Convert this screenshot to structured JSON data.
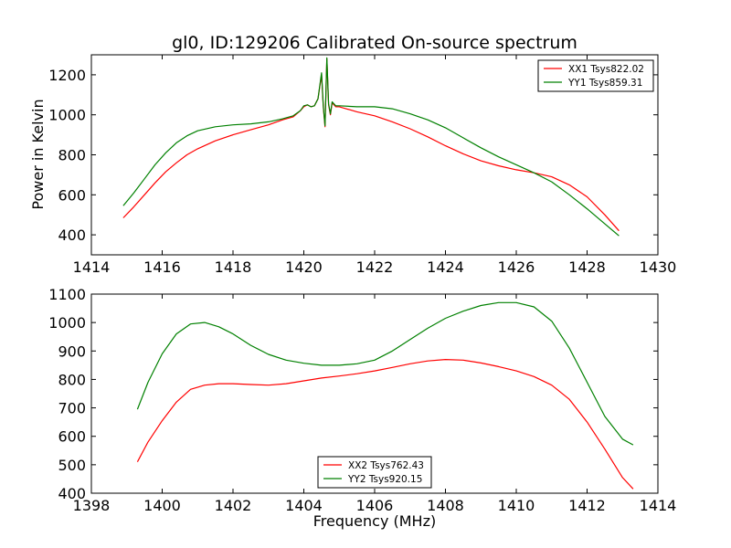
{
  "chart_data": [
    {
      "type": "line",
      "title": "gl0, ID:129206 Calibrated On-source spectrum",
      "xlabel": "",
      "ylabel": "Power in Kelvin",
      "xlim": [
        1414,
        1430
      ],
      "ylim": [
        300,
        1300
      ],
      "xticks": [
        "1414",
        "1416",
        "1418",
        "1420",
        "1422",
        "1424",
        "1426",
        "1428",
        "1430"
      ],
      "yticks": [
        "400",
        "600",
        "800",
        "1000",
        "1200"
      ],
      "legend_position": "top-right",
      "series": [
        {
          "name": "XX1 Tsys822.02",
          "color": "#ff0000",
          "x": [
            1414.9,
            1415.2,
            1415.5,
            1415.8,
            1416.1,
            1416.4,
            1416.7,
            1417.0,
            1417.5,
            1418.0,
            1418.5,
            1419.0,
            1419.4,
            1419.7,
            1419.9,
            1420.0,
            1420.1,
            1420.2,
            1420.3,
            1420.4,
            1420.5,
            1420.55,
            1420.6,
            1420.65,
            1420.7,
            1420.75,
            1420.8,
            1420.9,
            1421.0,
            1421.5,
            1422.0,
            1422.5,
            1423.0,
            1423.5,
            1424.0,
            1424.5,
            1425.0,
            1425.5,
            1426.0,
            1426.5,
            1427.0,
            1427.5,
            1428.0,
            1428.5,
            1428.9
          ],
          "y": [
            485,
            540,
            600,
            660,
            715,
            760,
            800,
            830,
            870,
            900,
            925,
            950,
            975,
            990,
            1020,
            1040,
            1050,
            1040,
            1045,
            1080,
            1200,
            1040,
            940,
            1280,
            1050,
            1000,
            1060,
            1040,
            1040,
            1015,
            995,
            965,
            930,
            890,
            845,
            805,
            770,
            745,
            725,
            710,
            690,
            650,
            590,
            500,
            420
          ]
        },
        {
          "name": "YY1 Tsys859.31",
          "color": "#008000",
          "x": [
            1414.9,
            1415.2,
            1415.5,
            1415.8,
            1416.1,
            1416.4,
            1416.7,
            1417.0,
            1417.5,
            1418.0,
            1418.5,
            1419.0,
            1419.4,
            1419.7,
            1419.9,
            1420.0,
            1420.1,
            1420.2,
            1420.3,
            1420.4,
            1420.5,
            1420.55,
            1420.6,
            1420.65,
            1420.7,
            1420.75,
            1420.8,
            1420.9,
            1421.0,
            1421.5,
            1422.0,
            1422.5,
            1423.0,
            1423.5,
            1424.0,
            1424.5,
            1425.0,
            1425.5,
            1426.0,
            1426.5,
            1427.0,
            1427.5,
            1428.0,
            1428.5,
            1428.9
          ],
          "y": [
            545,
            610,
            680,
            750,
            810,
            860,
            895,
            920,
            940,
            950,
            955,
            965,
            980,
            995,
            1020,
            1045,
            1050,
            1040,
            1045,
            1080,
            1210,
            1045,
            945,
            1285,
            1055,
            1005,
            1065,
            1045,
            1045,
            1040,
            1040,
            1030,
            1005,
            975,
            935,
            885,
            835,
            790,
            750,
            710,
            665,
            600,
            530,
            455,
            395
          ]
        }
      ]
    },
    {
      "type": "line",
      "title": "",
      "xlabel": "Frequency (MHz)",
      "ylabel": "",
      "xlim": [
        1398,
        1414
      ],
      "ylim": [
        400,
        1100
      ],
      "xticks": [
        "1398",
        "1400",
        "1402",
        "1404",
        "1406",
        "1408",
        "1410",
        "1412",
        "1414"
      ],
      "yticks": [
        "400",
        "500",
        "600",
        "700",
        "800",
        "900",
        "1000",
        "1100"
      ],
      "legend_position": "bottom-center",
      "series": [
        {
          "name": "XX2 Tsys762.43",
          "color": "#ff0000",
          "x": [
            1399.3,
            1399.6,
            1400.0,
            1400.4,
            1400.8,
            1401.2,
            1401.6,
            1402.0,
            1402.5,
            1403.0,
            1403.5,
            1404.0,
            1404.5,
            1405.0,
            1405.5,
            1406.0,
            1406.5,
            1407.0,
            1407.5,
            1408.0,
            1408.5,
            1409.0,
            1409.5,
            1410.0,
            1410.5,
            1411.0,
            1411.5,
            1412.0,
            1412.5,
            1413.0,
            1413.3
          ],
          "y": [
            510,
            580,
            655,
            720,
            765,
            780,
            785,
            785,
            782,
            780,
            785,
            795,
            805,
            812,
            820,
            830,
            842,
            855,
            865,
            870,
            868,
            858,
            845,
            830,
            810,
            780,
            730,
            650,
            555,
            455,
            415
          ]
        },
        {
          "name": "YY2 Tsys920.15",
          "color": "#008000",
          "x": [
            1399.3,
            1399.6,
            1400.0,
            1400.4,
            1400.8,
            1401.2,
            1401.6,
            1402.0,
            1402.5,
            1403.0,
            1403.5,
            1404.0,
            1404.5,
            1405.0,
            1405.5,
            1406.0,
            1406.5,
            1407.0,
            1407.5,
            1408.0,
            1408.5,
            1409.0,
            1409.5,
            1410.0,
            1410.5,
            1411.0,
            1411.5,
            1412.0,
            1412.5,
            1413.0,
            1413.3
          ],
          "y": [
            695,
            790,
            890,
            960,
            995,
            1000,
            985,
            960,
            920,
            888,
            868,
            857,
            850,
            850,
            855,
            868,
            900,
            940,
            980,
            1015,
            1040,
            1060,
            1070,
            1070,
            1055,
            1005,
            910,
            790,
            670,
            590,
            570
          ]
        }
      ]
    }
  ]
}
